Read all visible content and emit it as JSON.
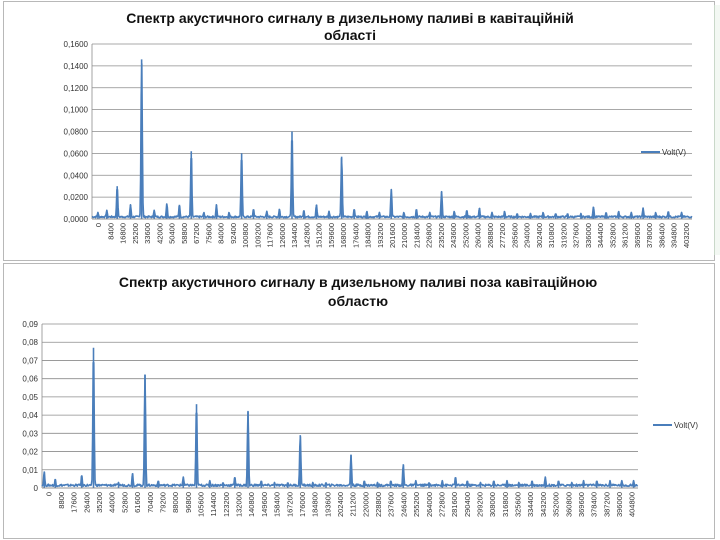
{
  "chart_data": [
    {
      "type": "line",
      "title_line1": "Спектр акустичного сигналу в дизельному паливі в кавітаційній",
      "title_line2": "області",
      "series": [
        {
          "name": "Volt(V)",
          "color": "#4a7ebb"
        }
      ],
      "xlim": [
        0,
        405000
      ],
      "ylim": [
        0,
        0.16
      ],
      "y_ticks": [
        "0,0000",
        "0,0200",
        "0,0400",
        "0,0600",
        "0,0800",
        "0,1000",
        "0,1200",
        "0,1400",
        "0,1600"
      ],
      "x_ticks": [
        "0",
        "8400",
        "16800",
        "25200",
        "33600",
        "42000",
        "50400",
        "58800",
        "67200",
        "75600",
        "84000",
        "92400",
        "100800",
        "109200",
        "117600",
        "126000",
        "134400",
        "142800",
        "151200",
        "159600",
        "168000",
        "176400",
        "184800",
        "193200",
        "201600",
        "210000",
        "218400",
        "226800",
        "235200",
        "243600",
        "252000",
        "260400",
        "268800",
        "277200",
        "285600",
        "294000",
        "302400",
        "310800",
        "319200",
        "327600",
        "336000",
        "344400",
        "352800",
        "361200",
        "369600",
        "378000",
        "386400",
        "394800",
        "403200"
      ],
      "peaks": [
        [
          4000,
          0.006
        ],
        [
          10000,
          0.008
        ],
        [
          17000,
          0.03
        ],
        [
          26000,
          0.013
        ],
        [
          33500,
          0.146
        ],
        [
          42000,
          0.008
        ],
        [
          50500,
          0.014
        ],
        [
          59000,
          0.013
        ],
        [
          67000,
          0.062
        ],
        [
          75500,
          0.006
        ],
        [
          84000,
          0.013
        ],
        [
          92500,
          0.006
        ],
        [
          101000,
          0.06
        ],
        [
          109000,
          0.009
        ],
        [
          118000,
          0.007
        ],
        [
          126500,
          0.009
        ],
        [
          135000,
          0.08
        ],
        [
          143000,
          0.008
        ],
        [
          151500,
          0.013
        ],
        [
          160000,
          0.007
        ],
        [
          168500,
          0.057
        ],
        [
          177000,
          0.009
        ],
        [
          185500,
          0.007
        ],
        [
          194000,
          0.006
        ],
        [
          202000,
          0.027
        ],
        [
          210500,
          0.006
        ],
        [
          219000,
          0.009
        ],
        [
          228000,
          0.006
        ],
        [
          236000,
          0.025
        ],
        [
          244500,
          0.007
        ],
        [
          253000,
          0.008
        ],
        [
          261500,
          0.01
        ],
        [
          270000,
          0.006
        ],
        [
          278500,
          0.007
        ],
        [
          287000,
          0.005
        ],
        [
          296000,
          0.005
        ],
        [
          304500,
          0.006
        ],
        [
          313000,
          0.005
        ],
        [
          321000,
          0.005
        ],
        [
          330000,
          0.005
        ],
        [
          338500,
          0.011
        ],
        [
          347000,
          0.006
        ],
        [
          355500,
          0.007
        ],
        [
          364000,
          0.006
        ],
        [
          372000,
          0.01
        ],
        [
          380500,
          0.006
        ],
        [
          389000,
          0.007
        ],
        [
          398000,
          0.006
        ]
      ],
      "baseline": 0.002,
      "legend_position": "right"
    },
    {
      "type": "line",
      "title_line1": "Спектр акустичного сигналу в дизельному паливі поза кавітаційною",
      "title_line2": "областю",
      "series": [
        {
          "name": "Volt(V)",
          "color": "#4a7ebb"
        }
      ],
      "xlim": [
        0,
        405000
      ],
      "ylim": [
        0,
        0.09
      ],
      "y_ticks": [
        "0",
        "0,01",
        "0,02",
        "0,03",
        "0,04",
        "0,05",
        "0,06",
        "0,07",
        "0,08",
        "0,09"
      ],
      "x_ticks": [
        "0",
        "8800",
        "17600",
        "26400",
        "35200",
        "44000",
        "52800",
        "61600",
        "70400",
        "79200",
        "88000",
        "96800",
        "105600",
        "114400",
        "123200",
        "132000",
        "140800",
        "149600",
        "158400",
        "167200",
        "176000",
        "184800",
        "193600",
        "202400",
        "211200",
        "220000",
        "228800",
        "237600",
        "246400",
        "255200",
        "264000",
        "272800",
        "281600",
        "290400",
        "299200",
        "308000",
        "316800",
        "325600",
        "334400",
        "343200",
        "352000",
        "360800",
        "369600",
        "378400",
        "387200",
        "396000",
        "404800"
      ],
      "peaks": [
        [
          1500,
          0.009
        ],
        [
          9000,
          0.005
        ],
        [
          27000,
          0.007
        ],
        [
          35000,
          0.077
        ],
        [
          52000,
          0.003
        ],
        [
          61500,
          0.008
        ],
        [
          70000,
          0.062
        ],
        [
          79000,
          0.004
        ],
        [
          96000,
          0.006
        ],
        [
          105000,
          0.046
        ],
        [
          114000,
          0.004
        ],
        [
          123000,
          0.003
        ],
        [
          131000,
          0.006
        ],
        [
          140000,
          0.042
        ],
        [
          149000,
          0.004
        ],
        [
          158000,
          0.003
        ],
        [
          167000,
          0.003
        ],
        [
          175500,
          0.029
        ],
        [
          184000,
          0.003
        ],
        [
          193000,
          0.003
        ],
        [
          210000,
          0.018
        ],
        [
          219000,
          0.004
        ],
        [
          228000,
          0.003
        ],
        [
          237000,
          0.004
        ],
        [
          245500,
          0.013
        ],
        [
          254000,
          0.004
        ],
        [
          263000,
          0.003
        ],
        [
          272000,
          0.004
        ],
        [
          281000,
          0.006
        ],
        [
          289000,
          0.004
        ],
        [
          298000,
          0.003
        ],
        [
          307000,
          0.004
        ],
        [
          316000,
          0.004
        ],
        [
          324000,
          0.003
        ],
        [
          333000,
          0.004
        ],
        [
          342000,
          0.006
        ],
        [
          351000,
          0.004
        ],
        [
          360000,
          0.003
        ],
        [
          368000,
          0.004
        ],
        [
          377000,
          0.004
        ],
        [
          386000,
          0.004
        ],
        [
          394000,
          0.004
        ],
        [
          402000,
          0.004
        ]
      ],
      "baseline": 0.0015,
      "legend_position": "right"
    }
  ]
}
